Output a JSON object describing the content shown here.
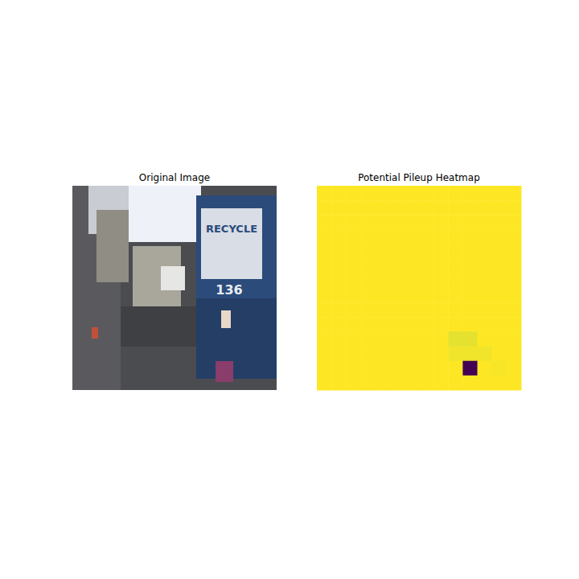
{
  "chart_data": [
    {
      "type": "image",
      "title": "Original Image",
      "labels": [
        "RECYCLE",
        "136"
      ],
      "tick_labels": false
    },
    {
      "type": "heatmap",
      "title": "Potential Pileup Heatmap",
      "tick_labels": false,
      "cells": [
        [
          1,
          1,
          1,
          1,
          1,
          1,
          1,
          1,
          1,
          1,
          1,
          1,
          1,
          1
        ],
        [
          1,
          1,
          1,
          1,
          1,
          1,
          1,
          1,
          1,
          1,
          1,
          1,
          1,
          1
        ],
        [
          1,
          1,
          1,
          1,
          1,
          1,
          1,
          1,
          1,
          1,
          1,
          1,
          1,
          1
        ],
        [
          1,
          1,
          1,
          1,
          1,
          1,
          1,
          1,
          1,
          1,
          1,
          1,
          1,
          1
        ],
        [
          1,
          1,
          1,
          1,
          1,
          1,
          1,
          1,
          1,
          1,
          1,
          1,
          1,
          1
        ],
        [
          1,
          1,
          1,
          1,
          1,
          1,
          1,
          1,
          1,
          1,
          1,
          1,
          1,
          1
        ],
        [
          1,
          1,
          1,
          1,
          1,
          1,
          1,
          1,
          1,
          1,
          1,
          1,
          1,
          1
        ],
        [
          1,
          1,
          1,
          1,
          1,
          1,
          1,
          1,
          1,
          1,
          1,
          1,
          1,
          1
        ],
        [
          1,
          1,
          1,
          1,
          1,
          1,
          1,
          1,
          1,
          1,
          1,
          1,
          1,
          1
        ],
        [
          1,
          1,
          1,
          1,
          1,
          1,
          1,
          1,
          1,
          1,
          1,
          1,
          1,
          1
        ],
        [
          1,
          1,
          1,
          1,
          1,
          1,
          1,
          1,
          1,
          0.96,
          0.96,
          1,
          1,
          1
        ],
        [
          1,
          1,
          1,
          1,
          1,
          1,
          1,
          1,
          1,
          0.98,
          0.98,
          0.98,
          1,
          1
        ],
        [
          1,
          1,
          1,
          1,
          1,
          1,
          1,
          1,
          1,
          1,
          0,
          1,
          0.99,
          1
        ],
        [
          1,
          1,
          1,
          1,
          1,
          1,
          1,
          1,
          1,
          1,
          1,
          1,
          1,
          1
        ]
      ]
    }
  ]
}
